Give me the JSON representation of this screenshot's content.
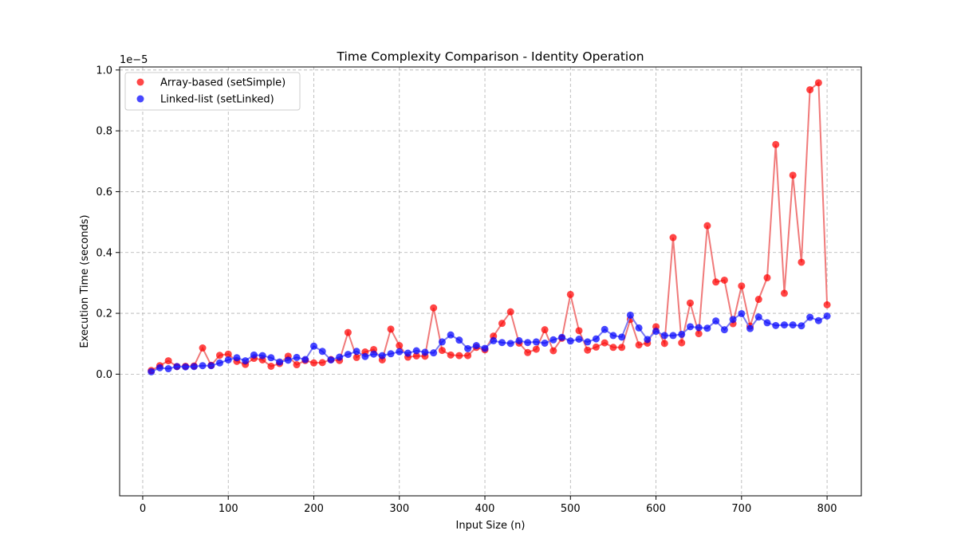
{
  "chart_data": {
    "type": "scatter",
    "title": "Time Complexity Comparison - Identity Operation",
    "xlabel": "Input Size (n)",
    "ylabel": "Execution Time (seconds)",
    "y_offset_label": "1e−5",
    "y_scale_factor": 1e-05,
    "xlim": [
      -27,
      840
    ],
    "ylim": [
      -0.4,
      1.01
    ],
    "x_ticks": [
      0,
      100,
      200,
      300,
      400,
      500,
      600,
      700,
      800
    ],
    "y_ticks": [
      0.0,
      0.2,
      0.4,
      0.6,
      0.8,
      1.0
    ],
    "y_tick_labels": [
      "0.0",
      "0.2",
      "0.4",
      "0.6",
      "0.8",
      "1.0"
    ],
    "grid": true,
    "legend_position": "upper-left",
    "connected_lines": true,
    "x": [
      10,
      20,
      30,
      40,
      50,
      60,
      70,
      80,
      90,
      100,
      110,
      120,
      130,
      140,
      150,
      160,
      170,
      180,
      190,
      200,
      210,
      220,
      230,
      240,
      250,
      260,
      270,
      280,
      290,
      300,
      310,
      320,
      330,
      340,
      350,
      360,
      370,
      380,
      390,
      400,
      410,
      420,
      430,
      440,
      450,
      460,
      470,
      480,
      490,
      500,
      510,
      520,
      530,
      540,
      550,
      560,
      570,
      580,
      590,
      600,
      610,
      620,
      630,
      640,
      650,
      660,
      670,
      680,
      690,
      700,
      710,
      720,
      730,
      740,
      750,
      760,
      770,
      780,
      790,
      800
    ],
    "series": [
      {
        "name": "Array-based (setSimple)",
        "color": "#ff0000",
        "line_color": "#f07a7a",
        "values": [
          0.012,
          0.028,
          0.044,
          0.025,
          0.026,
          0.027,
          0.086,
          0.029,
          0.062,
          0.066,
          0.042,
          0.032,
          0.052,
          0.047,
          0.026,
          0.035,
          0.059,
          0.031,
          0.045,
          0.037,
          0.038,
          0.048,
          0.045,
          0.137,
          0.055,
          0.073,
          0.081,
          0.047,
          0.148,
          0.094,
          0.056,
          0.06,
          0.059,
          0.218,
          0.078,
          0.063,
          0.061,
          0.061,
          0.088,
          0.08,
          0.125,
          0.167,
          0.205,
          0.102,
          0.071,
          0.082,
          0.146,
          0.077,
          0.118,
          0.262,
          0.143,
          0.079,
          0.089,
          0.103,
          0.088,
          0.088,
          0.18,
          0.096,
          0.102,
          0.156,
          0.101,
          0.449,
          0.103,
          0.234,
          0.133,
          0.488,
          0.303,
          0.309,
          0.166,
          0.29,
          0.158,
          0.246,
          0.317,
          0.755,
          0.266,
          0.654,
          0.368,
          0.935,
          0.958,
          0.228
        ]
      },
      {
        "name": "Linked-list (setLinked)",
        "color": "#0000ff",
        "line_color": "#7b7bf2",
        "values": [
          0.008,
          0.021,
          0.018,
          0.025,
          0.024,
          0.025,
          0.028,
          0.028,
          0.037,
          0.047,
          0.054,
          0.044,
          0.063,
          0.061,
          0.054,
          0.04,
          0.046,
          0.055,
          0.048,
          0.092,
          0.075,
          0.047,
          0.056,
          0.065,
          0.075,
          0.058,
          0.066,
          0.061,
          0.067,
          0.074,
          0.069,
          0.077,
          0.072,
          0.07,
          0.106,
          0.129,
          0.112,
          0.084,
          0.094,
          0.085,
          0.11,
          0.104,
          0.101,
          0.11,
          0.104,
          0.106,
          0.102,
          0.113,
          0.121,
          0.109,
          0.115,
          0.106,
          0.116,
          0.147,
          0.127,
          0.122,
          0.194,
          0.152,
          0.114,
          0.141,
          0.127,
          0.127,
          0.131,
          0.156,
          0.153,
          0.151,
          0.175,
          0.146,
          0.18,
          0.199,
          0.15,
          0.188,
          0.169,
          0.16,
          0.162,
          0.162,
          0.159,
          0.187,
          0.176,
          0.191
        ]
      }
    ]
  }
}
